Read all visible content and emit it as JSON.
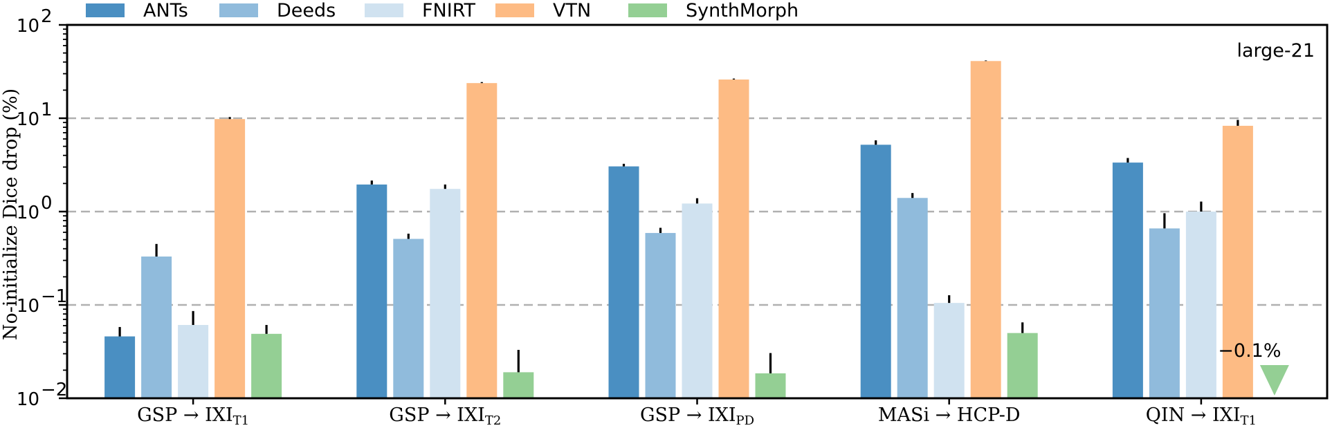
{
  "chart_data": {
    "type": "bar",
    "yscale": "log",
    "ylim": [
      0.01,
      100
    ],
    "ylabel": "No-initialize Dice drop (%)",
    "yticks": [
      {
        "value": 0.01,
        "base": "10",
        "exp": "−2"
      },
      {
        "value": 0.1,
        "base": "10",
        "exp": "−1"
      },
      {
        "value": 1,
        "base": "10",
        "exp": "0"
      },
      {
        "value": 10,
        "base": "10",
        "exp": "1"
      },
      {
        "value": 100,
        "base": "10",
        "exp": "2"
      }
    ],
    "grid_lines": [
      0.1,
      1,
      10
    ],
    "annotation": "large-21",
    "categories": [
      {
        "main": "GSP → IXI",
        "sub": "T1"
      },
      {
        "main": "GSP → IXI",
        "sub": "T2"
      },
      {
        "main": "GSP → IXI",
        "sub": "PD"
      },
      {
        "main": "MASi → HCP-D",
        "sub": ""
      },
      {
        "main": "QIN → IXI",
        "sub": "T1"
      }
    ],
    "series": [
      {
        "name": "ANTs",
        "color": "#4a8fc2",
        "values": [
          0.046,
          1.95,
          3.05,
          5.2,
          3.35
        ],
        "errors": [
          0.012,
          0.2,
          0.2,
          0.6,
          0.4
        ]
      },
      {
        "name": "Deeds",
        "color": "#90bbdc",
        "values": [
          0.33,
          0.51,
          0.59,
          1.4,
          0.66
        ],
        "errors": [
          0.12,
          0.07,
          0.08,
          0.18,
          0.3
        ]
      },
      {
        "name": "FNIRT",
        "color": "#d0e2f0",
        "values": [
          0.061,
          1.75,
          1.22,
          0.105,
          1.0
        ],
        "errors": [
          0.025,
          0.2,
          0.17,
          0.022,
          0.28
        ]
      },
      {
        "name": "VTN",
        "color": "#fdbb84",
        "values": [
          9.8,
          23.8,
          26.0,
          41.0,
          8.3
        ],
        "errors": [
          0.5,
          0.6,
          0.6,
          0.6,
          1.3
        ]
      },
      {
        "name": "SynthMorph",
        "color": "#94cf94",
        "values": [
          0.049,
          0.019,
          0.0185,
          0.05,
          null
        ],
        "errors": [
          0.012,
          0.014,
          0.012,
          0.015,
          null
        ]
      }
    ],
    "negative_marker": {
      "series": "SynthMorph",
      "category_index": 4,
      "label": "−0.1%",
      "color": "#94cf94"
    },
    "legend": {
      "placement": "top",
      "orientation": "horizontal"
    }
  }
}
